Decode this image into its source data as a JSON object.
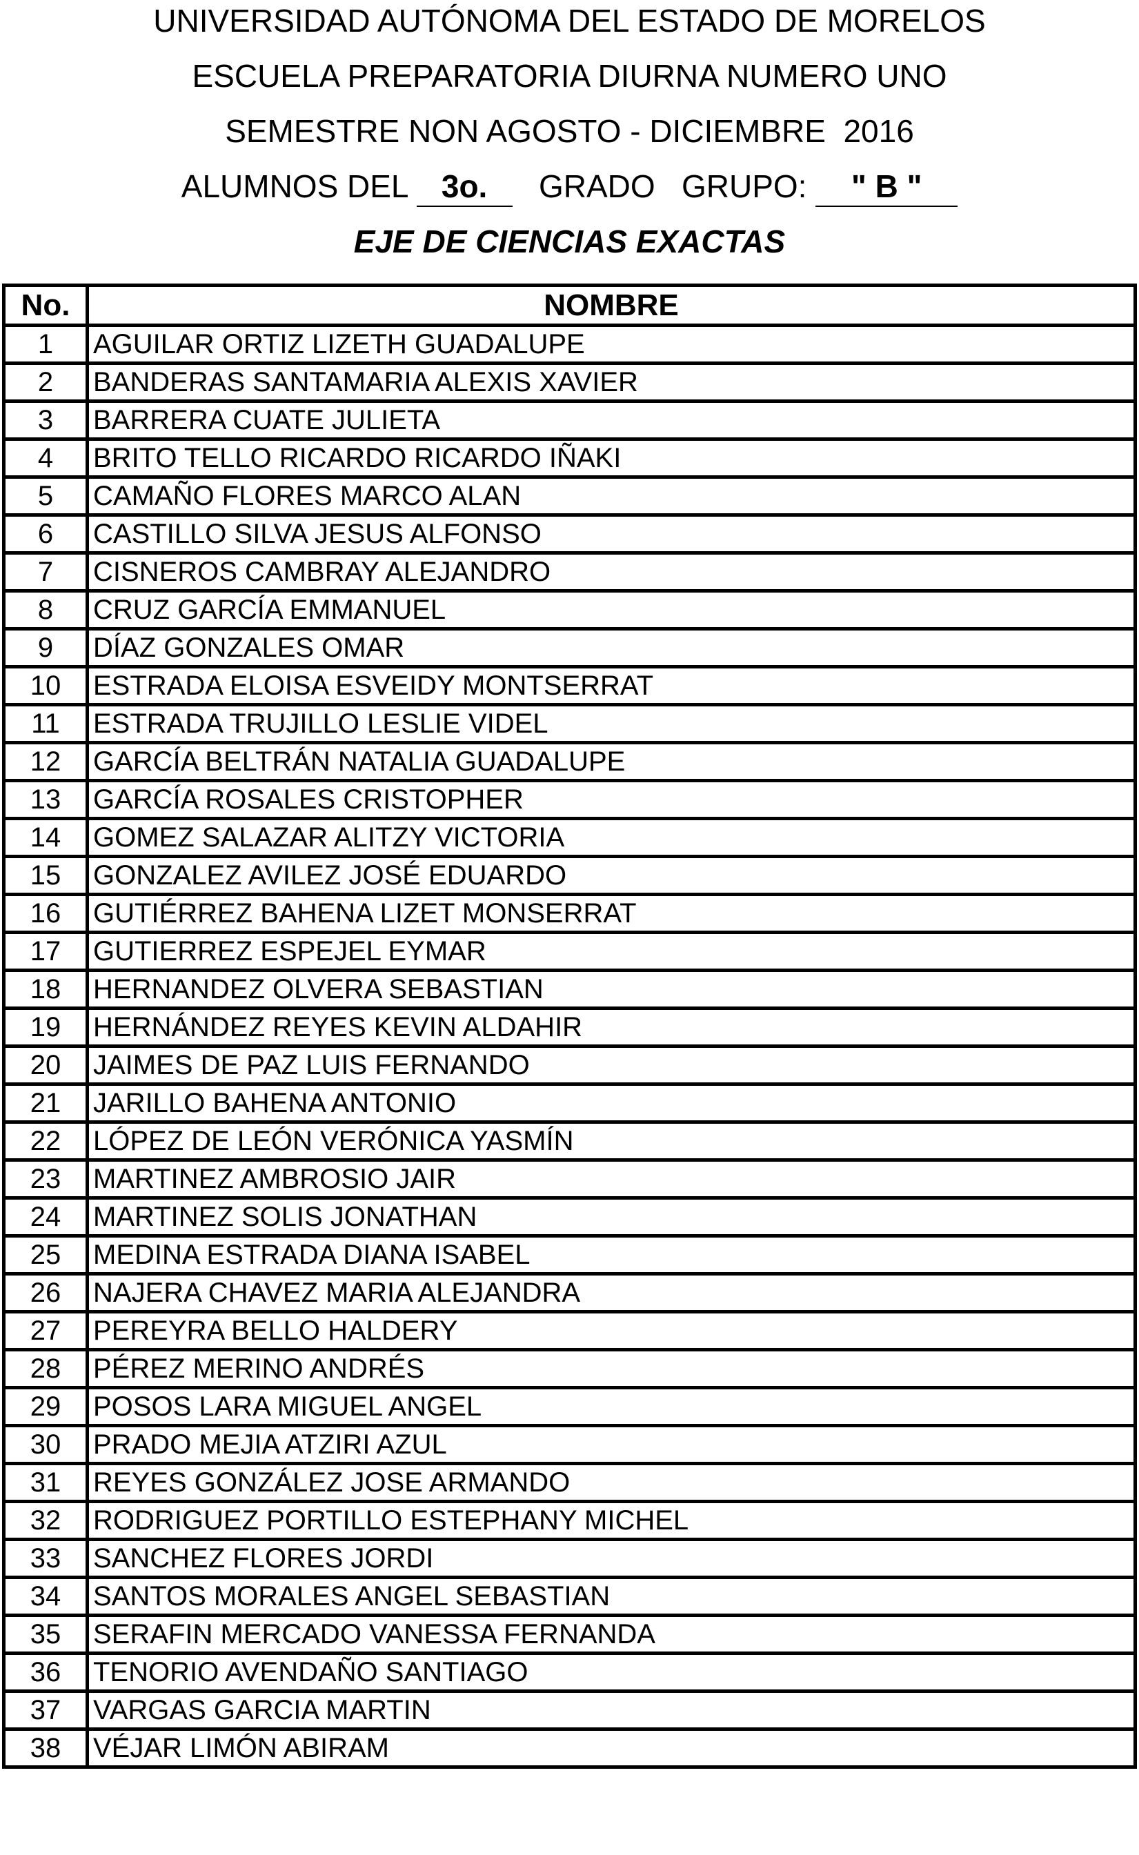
{
  "header": {
    "university": "UNIVERSIDAD AUTÓNOMA DEL ESTADO DE MORELOS",
    "school": "ESCUELA PREPARATORIA DIURNA NUMERO UNO",
    "semester": "SEMESTRE NON AGOSTO - DICIEMBRE  2016",
    "students_of_label": "ALUMNOS DEL",
    "grade_value": "3o.",
    "grade_label": "GRADO",
    "group_label": "GRUPO:",
    "group_value": "\" B \"",
    "axis": "EJE DE CIENCIAS EXACTAS"
  },
  "table": {
    "columns": [
      "No.",
      "NOMBRE"
    ],
    "rows": [
      [
        "1",
        "AGUILAR ORTIZ LIZETH GUADALUPE"
      ],
      [
        "2",
        "BANDERAS SANTAMARIA ALEXIS XAVIER"
      ],
      [
        "3",
        "BARRERA CUATE JULIETA"
      ],
      [
        "4",
        "BRITO TELLO RICARDO RICARDO IÑAKI"
      ],
      [
        "5",
        "CAMAÑO FLORES MARCO ALAN"
      ],
      [
        "6",
        "CASTILLO SILVA JESUS ALFONSO"
      ],
      [
        "7",
        "CISNEROS CAMBRAY ALEJANDRO"
      ],
      [
        "8",
        "CRUZ GARCÍA EMMANUEL"
      ],
      [
        "9",
        "DÍAZ GONZALES OMAR"
      ],
      [
        "10",
        "ESTRADA ELOISA ESVEIDY MONTSERRAT"
      ],
      [
        "11",
        "ESTRADA TRUJILLO LESLIE VIDEL"
      ],
      [
        "12",
        "GARCÍA BELTRÁN NATALIA GUADALUPE"
      ],
      [
        "13",
        "GARCÍA ROSALES CRISTOPHER"
      ],
      [
        "14",
        "GOMEZ SALAZAR ALITZY VICTORIA"
      ],
      [
        "15",
        "GONZALEZ AVILEZ JOSÉ EDUARDO"
      ],
      [
        "16",
        "GUTIÉRREZ BAHENA LIZET MONSERRAT"
      ],
      [
        "17",
        "GUTIERREZ ESPEJEL EYMAR"
      ],
      [
        "18",
        "HERNANDEZ OLVERA SEBASTIAN"
      ],
      [
        "19",
        "HERNÁNDEZ REYES KEVIN ALDAHIR"
      ],
      [
        "20",
        "JAIMES DE PAZ LUIS FERNANDO"
      ],
      [
        "21",
        "JARILLO BAHENA ANTONIO"
      ],
      [
        "22",
        "LÓPEZ DE LEÓN VERÓNICA YASMÍN"
      ],
      [
        "23",
        "MARTINEZ AMBROSIO JAIR"
      ],
      [
        "24",
        "MARTINEZ SOLIS JONATHAN"
      ],
      [
        "25",
        "MEDINA ESTRADA DIANA ISABEL"
      ],
      [
        "26",
        "NAJERA CHAVEZ MARIA ALEJANDRA"
      ],
      [
        "27",
        "PEREYRA BELLO HALDERY"
      ],
      [
        "28",
        "PÉREZ MERINO ANDRÉS"
      ],
      [
        "29",
        "POSOS LARA MIGUEL ANGEL"
      ],
      [
        "30",
        "PRADO MEJIA ATZIRI AZUL"
      ],
      [
        "31",
        "REYES GONZÁLEZ JOSE ARMANDO"
      ],
      [
        "32",
        "RODRIGUEZ PORTILLO ESTEPHANY MICHEL"
      ],
      [
        "33",
        "SANCHEZ FLORES JORDI"
      ],
      [
        "34",
        "SANTOS MORALES ANGEL SEBASTIAN"
      ],
      [
        "35",
        "SERAFIN MERCADO VANESSA FERNANDA"
      ],
      [
        "36",
        "TENORIO AVENDAÑO SANTIAGO"
      ],
      [
        "37",
        "VARGAS GARCIA MARTIN"
      ],
      [
        "38",
        "VÉJAR LIMÓN ABIRAM"
      ]
    ]
  }
}
